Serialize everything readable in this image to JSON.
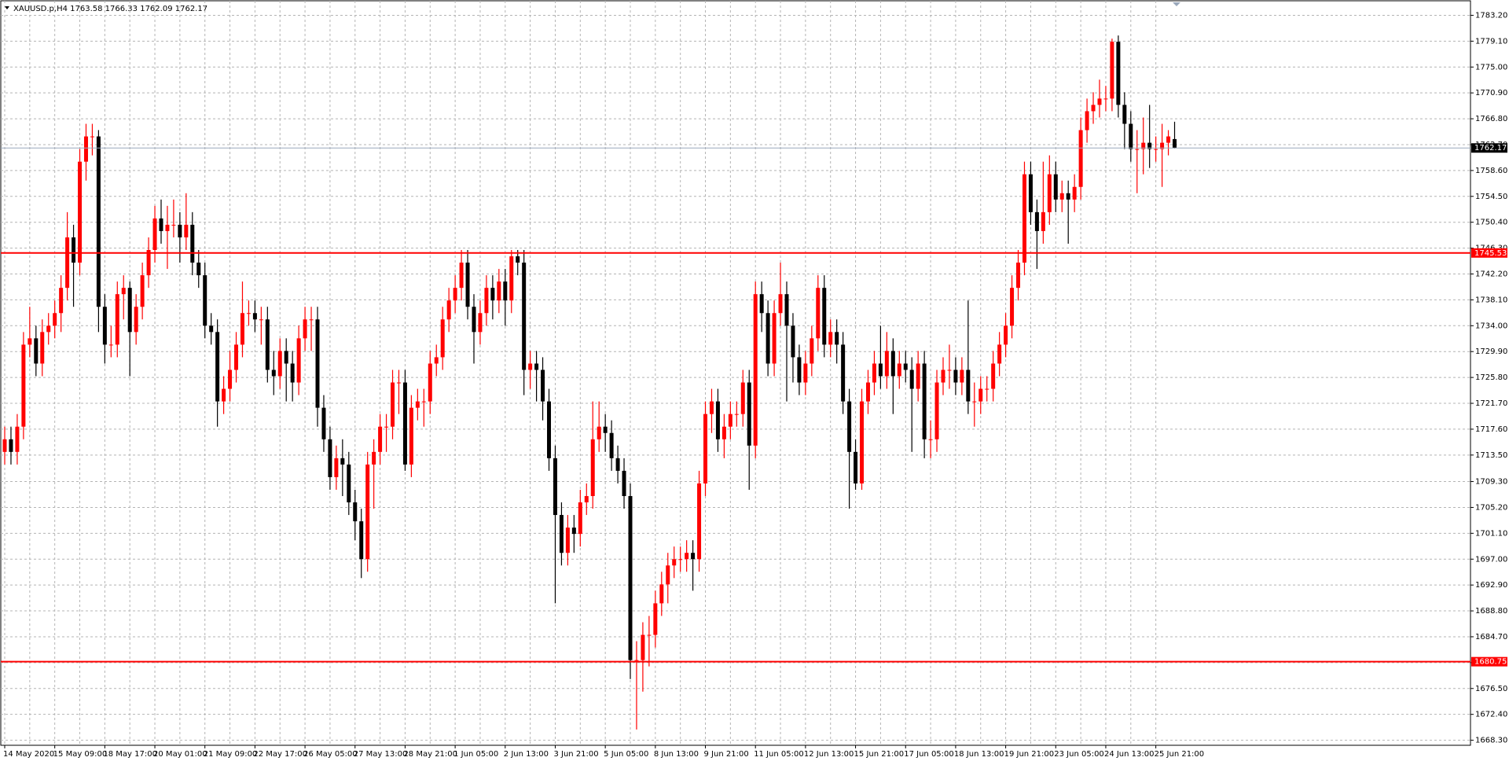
{
  "chart_data": {
    "type": "candlestick",
    "title": "XAUUSD.p,H4  1763.58 1766.33 1762.09 1762.17",
    "up_color": "#ff0000",
    "down_color": "#000000",
    "grid": true,
    "categories": [
      "14 May 2020",
      null,
      null,
      null,
      null,
      null,
      null,
      null,
      "15 May 09:00",
      null,
      null,
      null,
      null,
      null,
      null,
      null,
      "18 May 17:00",
      null,
      null,
      null,
      null,
      null,
      null,
      null,
      "20 May 01:00",
      null,
      null,
      null,
      null,
      null,
      null,
      null,
      "21 May 09:00",
      null,
      null,
      null,
      null,
      null,
      null,
      null,
      "22 May 17:00",
      null,
      null,
      null,
      null,
      null,
      null,
      null,
      "26 May 05:00",
      null,
      null,
      null,
      null,
      null,
      null,
      null,
      "27 May 13:00",
      null,
      null,
      null,
      null,
      null,
      null,
      null,
      "28 May 21:00",
      null,
      null,
      null,
      null,
      null,
      null,
      null,
      "1 Jun 05:00",
      null,
      null,
      null,
      null,
      null,
      null,
      null,
      "2 Jun 13:00",
      null,
      null,
      null,
      null,
      null,
      null,
      null,
      "3 Jun 21:00",
      null,
      null,
      null,
      null,
      null,
      null,
      null,
      "5 Jun 05:00",
      null,
      null,
      null,
      null,
      null,
      null,
      null,
      "8 Jun 13:00",
      null,
      null,
      null,
      null,
      null,
      null,
      null,
      "9 Jun 21:00",
      null,
      null,
      null,
      null,
      null,
      null,
      null,
      "11 Jun 05:00",
      null,
      null,
      null,
      null,
      null,
      null,
      null,
      "12 Jun 13:00",
      null,
      null,
      null,
      null,
      null,
      null,
      null,
      "15 Jun 21:00",
      null,
      null,
      null,
      null,
      null,
      null,
      null,
      "17 Jun 05:00",
      null,
      null,
      null,
      null,
      null,
      null,
      null,
      "18 Jun 13:00",
      null,
      null,
      null,
      null,
      null,
      null,
      null,
      "19 Jun 21:00",
      null,
      null,
      null,
      null,
      null,
      null,
      null,
      "23 Jun 05:00",
      null,
      null,
      null,
      null,
      null,
      null,
      null,
      "24 Jun 13:00",
      null,
      null,
      null,
      null,
      null,
      null,
      null,
      "25 Jun 21:00",
      null,
      null,
      null
    ],
    "open": [
      1714,
      1716,
      1714,
      1718,
      1731,
      1732,
      1728,
      1733,
      1734,
      1736,
      1740,
      1748,
      1744,
      1760,
      1764,
      1764,
      1737,
      1731,
      1731,
      1739,
      1740,
      1733,
      1737,
      1742,
      1746,
      1751,
      1749,
      1750,
      1750,
      1748,
      1750,
      1744,
      1742,
      1734,
      1733,
      1722,
      1724,
      1727,
      1731,
      1736,
      1736,
      1735,
      1735,
      1727,
      1726,
      1730,
      1728,
      1725,
      1732,
      1735,
      1735,
      1721,
      1716,
      1710,
      1713,
      1712,
      1706,
      1703,
      1697,
      1712,
      1714,
      1718,
      1718,
      1725,
      1725,
      1712,
      1721,
      1722,
      1722,
      1728,
      1729,
      1735,
      1738,
      1740,
      1744,
      1737,
      1733,
      1736,
      1740,
      1738,
      1741,
      1738,
      1745,
      1744,
      1727,
      1728,
      1727,
      1722,
      1713,
      1704,
      1698,
      1702,
      1701,
      1706,
      1707,
      1716,
      1718,
      1717,
      1713,
      1711,
      1707,
      1681,
      1681,
      1685,
      1685,
      1690,
      1693,
      1696,
      1697,
      1697,
      1698,
      1697,
      1709,
      1720,
      1722,
      1716,
      1718,
      1720,
      1720,
      1725,
      1715,
      1739,
      1736,
      1728,
      1736,
      1739,
      1734,
      1729,
      1725,
      1728,
      1732,
      1740,
      1731,
      1733,
      1731,
      1722,
      1714,
      1709,
      1722,
      1725,
      1728,
      1726,
      1730,
      1726,
      1728,
      1727,
      1724,
      1728,
      1716,
      1716,
      1725,
      1727,
      1727,
      1725,
      1727,
      1722,
      1722,
      1724,
      1724,
      1728,
      1731,
      1734,
      1740,
      1744,
      1758,
      1752,
      1749,
      1752,
      1758,
      1754,
      1755,
      1754,
      1756,
      1765,
      1768,
      1769,
      1770,
      1770,
      1779,
      1769,
      1766,
      1762,
      1762,
      1763,
      1762,
      1762,
      1763,
      1763.58
    ],
    "high": [
      1718,
      1718,
      1720,
      1733,
      1737,
      1734,
      1735,
      1736,
      1738,
      1742,
      1752,
      1750,
      1762,
      1766,
      1766,
      1765,
      1739,
      1734,
      1741,
      1742,
      1741,
      1739,
      1744,
      1748,
      1753,
      1754,
      1753,
      1754,
      1752,
      1755,
      1752,
      1746,
      1744,
      1736,
      1735,
      1726,
      1730,
      1733,
      1741,
      1738,
      1738,
      1737,
      1737,
      1730,
      1732,
      1732,
      1730,
      1734,
      1737,
      1737,
      1737,
      1723,
      1718,
      1715,
      1716,
      1714,
      1708,
      1705,
      1714,
      1716,
      1720,
      1720,
      1727,
      1727,
      1727,
      1723,
      1724,
      1724,
      1730,
      1731,
      1737,
      1740,
      1742,
      1746,
      1746,
      1739,
      1738,
      1742,
      1742,
      1743,
      1743,
      1746,
      1746,
      1746,
      1730,
      1730,
      1729,
      1724,
      1715,
      1706,
      1704,
      1704,
      1708,
      1709,
      1722,
      1722,
      1720,
      1719,
      1715,
      1713,
      1709,
      1684,
      1687,
      1688,
      1692,
      1695,
      1698,
      1699,
      1699,
      1700,
      1700,
      1711,
      1722,
      1724,
      1724,
      1720,
      1722,
      1722,
      1727,
      1727,
      1741,
      1741,
      1738,
      1738,
      1744,
      1741,
      1736,
      1731,
      1730,
      1734,
      1742,
      1742,
      1735,
      1735,
      1733,
      1724,
      1716,
      1724,
      1727,
      1730,
      1734,
      1733,
      1732,
      1730,
      1730,
      1729,
      1730,
      1730,
      1719,
      1727,
      1729,
      1731,
      1729,
      1729,
      1738,
      1725,
      1726,
      1726,
      1730,
      1733,
      1736,
      1742,
      1746,
      1760,
      1760,
      1754,
      1760,
      1761,
      1760,
      1757,
      1757,
      1758,
      1767,
      1770,
      1771,
      1773,
      1772,
      1779.5,
      1780,
      1771,
      1768,
      1765,
      1767,
      1769,
      1764,
      1766,
      1765,
      1766.33
    ],
    "low": [
      1712,
      1712,
      1712,
      1716,
      1729,
      1726,
      1726,
      1731,
      1732,
      1733,
      1738,
      1737,
      1742,
      1757,
      1761,
      1733,
      1728,
      1729,
      1729,
      1735,
      1726,
      1731,
      1735,
      1740,
      1744,
      1747,
      1743,
      1748,
      1744,
      1746,
      1742,
      1740,
      1732,
      1731,
      1718,
      1720,
      1722,
      1725,
      1729,
      1734,
      1733,
      1731,
      1725,
      1723,
      1724,
      1722,
      1722,
      1723,
      1730,
      1730,
      1718,
      1714,
      1708,
      1708,
      1707,
      1704,
      1700,
      1694,
      1695,
      1705,
      1712,
      1714,
      1716,
      1720,
      1711,
      1710,
      1719,
      1718,
      1720,
      1726,
      1727,
      1733,
      1736,
      1738,
      1735,
      1728,
      1731,
      1734,
      1735,
      1736,
      1734,
      1736,
      1742,
      1723,
      1724,
      1722,
      1719,
      1711,
      1690,
      1696,
      1696,
      1698,
      1699,
      1704,
      1705,
      1714,
      1714,
      1711,
      1709,
      1705,
      1678,
      1670,
      1676,
      1680,
      1683,
      1688,
      1690,
      1694,
      1695,
      1695,
      1692,
      1695,
      1707,
      1717,
      1714,
      1713,
      1716,
      1718,
      1718,
      1708,
      1713,
      1733,
      1726,
      1726,
      1734,
      1722,
      1725,
      1723,
      1723,
      1726,
      1730,
      1729,
      1729,
      1728,
      1720,
      1705,
      1708,
      1708,
      1720,
      1723,
      1724,
      1724,
      1720,
      1724,
      1725,
      1714,
      1722,
      1713,
      1713,
      1714,
      1723,
      1724,
      1723,
      1723,
      1720,
      1718,
      1720,
      1722,
      1722,
      1726,
      1729,
      1732,
      1738,
      1742,
      1750,
      1743,
      1747,
      1750,
      1752,
      1752,
      1747,
      1752,
      1754,
      1763,
      1766,
      1767,
      1768,
      1768,
      1767,
      1762,
      1760,
      1755,
      1758,
      1759,
      1760,
      1756,
      1761,
      1762.09
    ],
    "close": [
      1716,
      1714,
      1718,
      1731,
      1732,
      1728,
      1733,
      1734,
      1736,
      1740,
      1748,
      1744,
      1760,
      1764,
      1764,
      1737,
      1731,
      1731,
      1739,
      1740,
      1733,
      1737,
      1742,
      1746,
      1751,
      1749,
      1750,
      1750,
      1748,
      1750,
      1744,
      1742,
      1734,
      1733,
      1722,
      1724,
      1727,
      1731,
      1736,
      1736,
      1735,
      1735,
      1727,
      1726,
      1730,
      1728,
      1725,
      1732,
      1735,
      1735,
      1721,
      1716,
      1710,
      1713,
      1712,
      1706,
      1703,
      1697,
      1712,
      1714,
      1718,
      1718,
      1725,
      1725,
      1712,
      1721,
      1722,
      1722,
      1728,
      1729,
      1735,
      1738,
      1740,
      1744,
      1737,
      1733,
      1736,
      1740,
      1738,
      1741,
      1738,
      1745,
      1744,
      1727,
      1728,
      1727,
      1722,
      1713,
      1704,
      1698,
      1702,
      1701,
      1706,
      1707,
      1716,
      1718,
      1717,
      1713,
      1711,
      1707,
      1681,
      1681,
      1685,
      1685,
      1690,
      1693,
      1696,
      1697,
      1697,
      1698,
      1697,
      1709,
      1720,
      1722,
      1716,
      1718,
      1720,
      1720,
      1725,
      1715,
      1739,
      1736,
      1728,
      1736,
      1739,
      1734,
      1729,
      1725,
      1728,
      1732,
      1740,
      1731,
      1733,
      1731,
      1722,
      1714,
      1709,
      1722,
      1725,
      1728,
      1726,
      1730,
      1726,
      1728,
      1727,
      1724,
      1728,
      1716,
      1716,
      1725,
      1727,
      1727,
      1725,
      1727,
      1722,
      1722,
      1724,
      1724,
      1728,
      1731,
      1734,
      1740,
      1744,
      1758,
      1752,
      1749,
      1752,
      1758,
      1754,
      1755,
      1754,
      1756,
      1765,
      1768,
      1769,
      1770,
      1770,
      1779,
      1769,
      1766,
      1762,
      1762,
      1763,
      1762,
      1762,
      1763,
      1764,
      1762.17
    ],
    "ylim": [
      1667.5,
      1785.5
    ],
    "yticks": [
      {
        "value": 1783.2,
        "label": "1783.20"
      },
      {
        "value": 1779.1,
        "label": "1779.10"
      },
      {
        "value": 1775,
        "label": "1775.00"
      },
      {
        "value": 1770.9,
        "label": "1770.90"
      },
      {
        "value": 1766.8,
        "label": "1766.80"
      },
      {
        "value": 1762.7,
        "label": "1762.70"
      },
      {
        "value": 1758.6,
        "label": "1758.60"
      },
      {
        "value": 1754.5,
        "label": "1754.50"
      },
      {
        "value": 1750.4,
        "label": "1750.40"
      },
      {
        "value": 1746.3,
        "label": "1746.30"
      },
      {
        "value": 1742.2,
        "label": "1742.20"
      },
      {
        "value": 1738.1,
        "label": "1738.10"
      },
      {
        "value": 1734,
        "label": "1734.00"
      },
      {
        "value": 1729.9,
        "label": "1729.90"
      },
      {
        "value": 1725.8,
        "label": "1725.80"
      },
      {
        "value": 1721.7,
        "label": "1721.70"
      },
      {
        "value": 1717.6,
        "label": "1717.60"
      },
      {
        "value": 1713.5,
        "label": "1713.50"
      },
      {
        "value": 1709.3,
        "label": "1709.30"
      },
      {
        "value": 1705.2,
        "label": "1705.20"
      },
      {
        "value": 1701.1,
        "label": "1701.10"
      },
      {
        "value": 1697,
        "label": "1697.00"
      },
      {
        "value": 1692.9,
        "label": "1692.90"
      },
      {
        "value": 1688.8,
        "label": "1688.80"
      },
      {
        "value": 1684.7,
        "label": "1684.70"
      },
      {
        "value": 1680.6,
        "label": "1680.60"
      },
      {
        "value": 1676.5,
        "label": "1676.50"
      },
      {
        "value": 1672.4,
        "label": "1672.40"
      },
      {
        "value": 1668.3,
        "label": "1668.30"
      }
    ],
    "hlines": [
      {
        "value": 1762.17,
        "color": "#9aa8bb",
        "box_color": "#000000"
      },
      {
        "value": 1745.53,
        "color": "#ff0000",
        "box_color": "#ff0000"
      },
      {
        "value": 1680.75,
        "color": "#ff0000",
        "box_color": "#ff0000"
      }
    ]
  }
}
